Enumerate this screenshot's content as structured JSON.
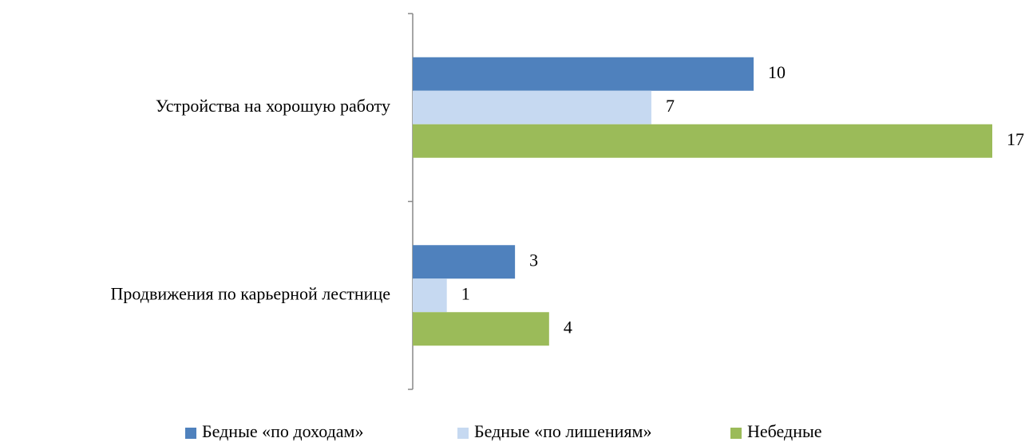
{
  "chart_data": {
    "type": "bar",
    "orientation": "horizontal",
    "categories": [
      "Устройства на хорошую работу",
      "Продвижения по карьерной лестнице"
    ],
    "series": [
      {
        "name": "Бедные «по доходам»",
        "color": "#4f81bd",
        "values": [
          10,
          3
        ]
      },
      {
        "name": "Бедные «по лишениям»",
        "color": "#c6d9f1",
        "values": [
          7,
          1
        ]
      },
      {
        "name": "Небедные",
        "color": "#9bbb59",
        "values": [
          17,
          4
        ]
      }
    ],
    "xlim": [
      0,
      17
    ],
    "legend": "bottom",
    "data_labels": true
  }
}
